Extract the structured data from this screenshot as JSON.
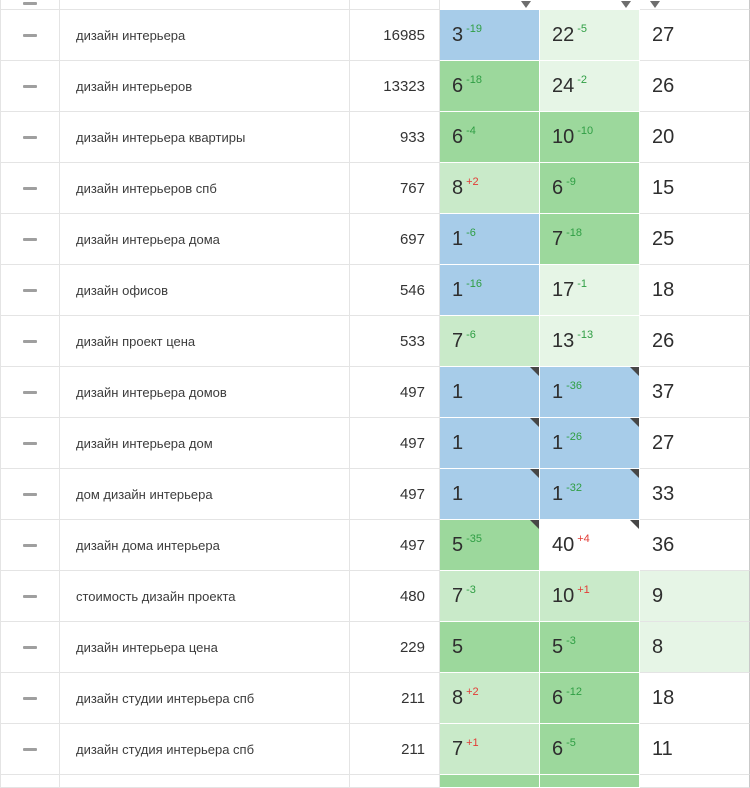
{
  "colors": {
    "blue": "#a7cce9",
    "g1": "#9cd89c",
    "g2": "#c9eac9",
    "g3": "#e6f5e6",
    "white": "#ffffff"
  },
  "delta_colors": {
    "green": "#2f9e44",
    "red": "#e23c36"
  },
  "table": {
    "rows": [
      {
        "keyword": "дизайн интерьера",
        "volume": "16985",
        "cells": [
          {
            "value": "3",
            "delta": "-19",
            "delta_color": "green",
            "bg": "blue",
            "marker": false
          },
          {
            "value": "22",
            "delta": "-5",
            "delta_color": "green",
            "bg": "g3",
            "marker": false
          },
          {
            "value": "27",
            "bg": "white",
            "marker": false
          }
        ]
      },
      {
        "keyword": "дизайн интерьеров",
        "volume": "13323",
        "cells": [
          {
            "value": "6",
            "delta": "-18",
            "delta_color": "green",
            "bg": "g1",
            "marker": false
          },
          {
            "value": "24",
            "delta": "-2",
            "delta_color": "green",
            "bg": "g3",
            "marker": false
          },
          {
            "value": "26",
            "bg": "white",
            "marker": false
          }
        ]
      },
      {
        "keyword": "дизайн интерьера квартиры",
        "volume": "933",
        "cells": [
          {
            "value": "6",
            "delta": "-4",
            "delta_color": "green",
            "bg": "g1",
            "marker": false
          },
          {
            "value": "10",
            "delta": "-10",
            "delta_color": "green",
            "bg": "g1",
            "marker": false
          },
          {
            "value": "20",
            "bg": "white",
            "marker": false
          }
        ]
      },
      {
        "keyword": "дизайн интерьеров спб",
        "volume": "767",
        "cells": [
          {
            "value": "8",
            "delta": "+2",
            "delta_color": "red",
            "bg": "g2",
            "marker": false
          },
          {
            "value": "6",
            "delta": "-9",
            "delta_color": "green",
            "bg": "g1",
            "marker": false
          },
          {
            "value": "15",
            "bg": "white",
            "marker": false
          }
        ]
      },
      {
        "keyword": "дизайн интерьера дома",
        "volume": "697",
        "cells": [
          {
            "value": "1",
            "delta": "-6",
            "delta_color": "green",
            "bg": "blue",
            "marker": false
          },
          {
            "value": "7",
            "delta": "-18",
            "delta_color": "green",
            "bg": "g1",
            "marker": false
          },
          {
            "value": "25",
            "bg": "white",
            "marker": false
          }
        ]
      },
      {
        "keyword": "дизайн офисов",
        "volume": "546",
        "cells": [
          {
            "value": "1",
            "delta": "-16",
            "delta_color": "green",
            "bg": "blue",
            "marker": false
          },
          {
            "value": "17",
            "delta": "-1",
            "delta_color": "green",
            "bg": "g3",
            "marker": false
          },
          {
            "value": "18",
            "bg": "white",
            "marker": false
          }
        ]
      },
      {
        "keyword": "дизайн проект цена",
        "volume": "533",
        "cells": [
          {
            "value": "7",
            "delta": "-6",
            "delta_color": "green",
            "bg": "g2",
            "marker": false
          },
          {
            "value": "13",
            "delta": "-13",
            "delta_color": "green",
            "bg": "g3",
            "marker": false
          },
          {
            "value": "26",
            "bg": "white",
            "marker": false
          }
        ]
      },
      {
        "keyword": "дизайн интерьера домов",
        "volume": "497",
        "cells": [
          {
            "value": "1",
            "bg": "blue",
            "marker": true
          },
          {
            "value": "1",
            "delta": "-36",
            "delta_color": "green",
            "bg": "blue",
            "marker": true
          },
          {
            "value": "37",
            "bg": "white",
            "marker": false
          }
        ]
      },
      {
        "keyword": "дизайн интерьера дом",
        "volume": "497",
        "cells": [
          {
            "value": "1",
            "bg": "blue",
            "marker": true
          },
          {
            "value": "1",
            "delta": "-26",
            "delta_color": "green",
            "bg": "blue",
            "marker": true
          },
          {
            "value": "27",
            "bg": "white",
            "marker": false
          }
        ]
      },
      {
        "keyword": "дом дизайн интерьера",
        "volume": "497",
        "cells": [
          {
            "value": "1",
            "bg": "blue",
            "marker": true
          },
          {
            "value": "1",
            "delta": "-32",
            "delta_color": "green",
            "bg": "blue",
            "marker": true
          },
          {
            "value": "33",
            "bg": "white",
            "marker": false
          }
        ]
      },
      {
        "keyword": "дизайн дома интерьера",
        "volume": "497",
        "cells": [
          {
            "value": "5",
            "delta": "-35",
            "delta_color": "green",
            "bg": "g1",
            "marker": true
          },
          {
            "value": "40",
            "delta": "+4",
            "delta_color": "red",
            "bg": "white",
            "marker": true
          },
          {
            "value": "36",
            "bg": "white",
            "marker": false
          }
        ]
      },
      {
        "keyword": "стоимость дизайн проекта",
        "volume": "480",
        "cells": [
          {
            "value": "7",
            "delta": "-3",
            "delta_color": "green",
            "bg": "g2",
            "marker": false
          },
          {
            "value": "10",
            "delta": "+1",
            "delta_color": "red",
            "bg": "g2",
            "marker": false
          },
          {
            "value": "9",
            "bg": "g3",
            "marker": false
          }
        ]
      },
      {
        "keyword": "дизайн интерьера цена",
        "volume": "229",
        "cells": [
          {
            "value": "5",
            "bg": "g1",
            "marker": false
          },
          {
            "value": "5",
            "delta": "-3",
            "delta_color": "green",
            "bg": "g1",
            "marker": false
          },
          {
            "value": "8",
            "bg": "g3",
            "marker": false
          }
        ]
      },
      {
        "keyword": "дизайн студии интерьера спб",
        "volume": "211",
        "cells": [
          {
            "value": "8",
            "delta": "+2",
            "delta_color": "red",
            "bg": "g2",
            "marker": false
          },
          {
            "value": "6",
            "delta": "-12",
            "delta_color": "green",
            "bg": "g1",
            "marker": false
          },
          {
            "value": "18",
            "bg": "white",
            "marker": false
          }
        ]
      },
      {
        "keyword": "дизайн студия интерьера спб",
        "volume": "211",
        "cells": [
          {
            "value": "7",
            "delta": "+1",
            "delta_color": "red",
            "bg": "g2",
            "marker": false
          },
          {
            "value": "6",
            "delta": "-5",
            "delta_color": "green",
            "bg": "g1",
            "marker": false
          },
          {
            "value": "11",
            "bg": "white",
            "marker": false
          }
        ]
      }
    ]
  },
  "footer_sliver": {
    "pos1_bg": "g1",
    "pos2_bg": "g1"
  }
}
